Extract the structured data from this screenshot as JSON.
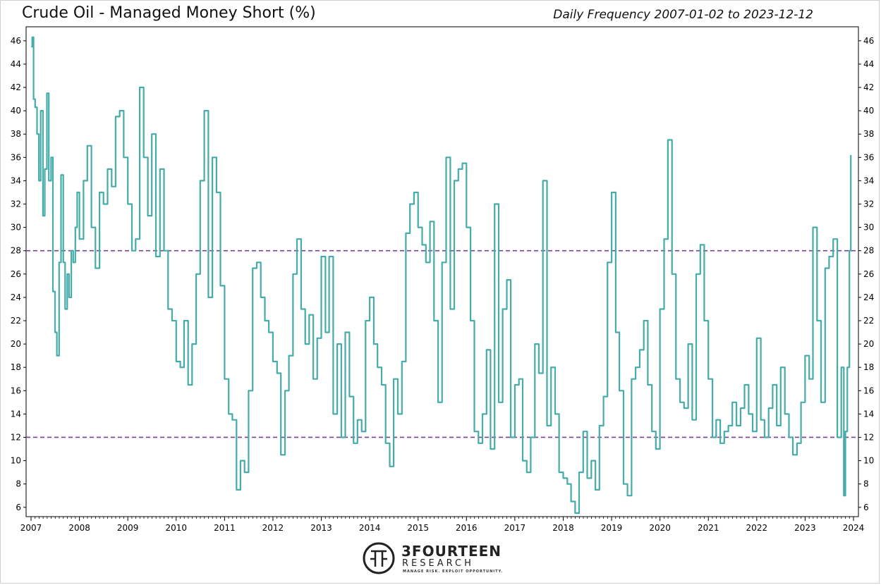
{
  "header": {
    "title": "Crude Oil - Managed Money Short (%)",
    "subtitle": "Daily Frequency 2007-01-02 to 2023-12-12"
  },
  "branding": {
    "name": "3FOURTEEN",
    "sub": "RESEARCH",
    "tagline": "MANAGE RISK. EXPLOIT OPPORTUNITY."
  },
  "colors": {
    "series": "#44aca9",
    "threshold": "#7a3f8f",
    "axis": "#000000"
  },
  "chart_data": {
    "type": "line",
    "title": "Crude Oil - Managed Money Short (%)",
    "subtitle": "Daily Frequency 2007-01-02 to 2023-12-12",
    "xlim": [
      "2007-01-01",
      "2024-01-01"
    ],
    "ylim": [
      5.2,
      47.2
    ],
    "x_ticks": [
      "2007",
      "2008",
      "2009",
      "2010",
      "2011",
      "2012",
      "2013",
      "2014",
      "2015",
      "2016",
      "2017",
      "2018",
      "2019",
      "2020",
      "2021",
      "2022",
      "2023",
      "2024"
    ],
    "y_ticks": [
      6,
      8,
      10,
      12,
      14,
      16,
      18,
      20,
      22,
      24,
      26,
      28,
      30,
      32,
      34,
      36,
      38,
      40,
      42,
      44,
      46
    ],
    "y_axis_right_mirror": true,
    "grid": false,
    "reference_lines": [
      {
        "y": 28,
        "style": "dashed"
      },
      {
        "y": 12,
        "style": "dashed"
      }
    ],
    "series": [
      {
        "x": [
          "2007-01-02",
          "2007-01-10",
          "2007-01-20",
          "2007-02-01",
          "2007-02-15",
          "2007-03-01",
          "2007-03-15",
          "2007-04-01",
          "2007-04-15",
          "2007-05-01",
          "2007-05-15",
          "2007-06-01",
          "2007-06-15",
          "2007-07-01",
          "2007-07-15",
          "2007-08-01",
          "2007-08-15",
          "2007-09-01",
          "2007-09-15",
          "2007-10-01",
          "2007-10-15",
          "2007-11-01",
          "2007-11-15",
          "2007-12-01",
          "2007-12-15",
          "2008-01-01",
          "2008-02-01",
          "2008-03-01",
          "2008-04-01",
          "2008-05-01",
          "2008-06-01",
          "2008-07-01",
          "2008-08-01",
          "2008-09-01",
          "2008-10-01",
          "2008-11-01",
          "2008-12-01",
          "2009-01-01",
          "2009-02-01",
          "2009-03-01",
          "2009-04-01",
          "2009-05-01",
          "2009-06-01",
          "2009-07-01",
          "2009-08-01",
          "2009-09-01",
          "2009-10-01",
          "2009-11-01",
          "2009-12-01",
          "2010-01-01",
          "2010-02-01",
          "2010-03-01",
          "2010-04-01",
          "2010-05-01",
          "2010-06-01",
          "2010-07-01",
          "2010-08-01",
          "2010-09-01",
          "2010-10-01",
          "2010-11-01",
          "2010-12-01",
          "2011-01-01",
          "2011-02-01",
          "2011-03-01",
          "2011-04-01",
          "2011-05-01",
          "2011-06-01",
          "2011-07-01",
          "2011-08-01",
          "2011-09-01",
          "2011-10-01",
          "2011-11-01",
          "2011-12-01",
          "2012-01-01",
          "2012-02-01",
          "2012-03-01",
          "2012-04-01",
          "2012-05-01",
          "2012-06-01",
          "2012-07-01",
          "2012-08-01",
          "2012-09-01",
          "2012-10-01",
          "2012-11-01",
          "2012-12-01",
          "2013-01-01",
          "2013-02-01",
          "2013-03-01",
          "2013-04-01",
          "2013-05-01",
          "2013-06-01",
          "2013-07-01",
          "2013-08-01",
          "2013-09-01",
          "2013-10-01",
          "2013-11-01",
          "2013-12-01",
          "2014-01-01",
          "2014-02-01",
          "2014-03-01",
          "2014-04-01",
          "2014-05-01",
          "2014-06-01",
          "2014-07-01",
          "2014-08-01",
          "2014-09-01",
          "2014-10-01",
          "2014-11-01",
          "2014-12-01",
          "2015-01-01",
          "2015-02-01",
          "2015-03-01",
          "2015-04-01",
          "2015-05-01",
          "2015-06-01",
          "2015-07-01",
          "2015-08-01",
          "2015-09-01",
          "2015-10-01",
          "2015-11-01",
          "2015-12-01",
          "2016-01-01",
          "2016-02-01",
          "2016-03-01",
          "2016-04-01",
          "2016-05-01",
          "2016-06-01",
          "2016-07-01",
          "2016-08-01",
          "2016-09-01",
          "2016-10-01",
          "2016-11-01",
          "2016-12-01",
          "2017-01-01",
          "2017-02-01",
          "2017-03-01",
          "2017-04-01",
          "2017-05-01",
          "2017-06-01",
          "2017-07-01",
          "2017-08-01",
          "2017-09-01",
          "2017-10-01",
          "2017-11-01",
          "2017-12-01",
          "2018-01-01",
          "2018-02-01",
          "2018-03-01",
          "2018-04-01",
          "2018-05-01",
          "2018-06-01",
          "2018-07-01",
          "2018-08-01",
          "2018-09-01",
          "2018-10-01",
          "2018-11-01",
          "2018-12-01",
          "2019-01-01",
          "2019-02-01",
          "2019-03-01",
          "2019-04-01",
          "2019-05-01",
          "2019-06-01",
          "2019-07-01",
          "2019-08-01",
          "2019-09-01",
          "2019-10-01",
          "2019-11-01",
          "2019-12-01",
          "2020-01-01",
          "2020-02-01",
          "2020-03-01",
          "2020-04-01",
          "2020-05-01",
          "2020-06-01",
          "2020-07-01",
          "2020-08-01",
          "2020-09-01",
          "2020-10-01",
          "2020-11-01",
          "2020-12-01",
          "2021-01-01",
          "2021-02-01",
          "2021-03-01",
          "2021-04-01",
          "2021-05-01",
          "2021-06-01",
          "2021-07-01",
          "2021-08-01",
          "2021-09-01",
          "2021-10-01",
          "2021-11-01",
          "2021-12-01",
          "2022-01-01",
          "2022-02-01",
          "2022-03-01",
          "2022-04-01",
          "2022-05-01",
          "2022-06-01",
          "2022-07-01",
          "2022-08-01",
          "2022-09-01",
          "2022-10-01",
          "2022-11-01",
          "2022-12-01",
          "2023-01-01",
          "2023-02-01",
          "2023-03-01",
          "2023-04-01",
          "2023-05-01",
          "2023-06-01",
          "2023-07-01",
          "2023-08-01",
          "2023-09-01",
          "2023-10-01",
          "2023-10-20",
          "2023-11-01",
          "2023-11-15",
          "2023-12-01",
          "2023-12-12"
        ],
        "y": [
          45.5,
          46.3,
          41.0,
          40.3,
          38.0,
          34.0,
          40.0,
          31.0,
          35.0,
          41.5,
          34.0,
          36.0,
          24.5,
          21.0,
          19.0,
          27.0,
          34.5,
          27.0,
          23.0,
          26.0,
          24.0,
          28.0,
          27.0,
          30.0,
          33.0,
          29.0,
          34.0,
          37.0,
          30.0,
          26.5,
          33.0,
          32.0,
          35.0,
          33.5,
          39.5,
          40.0,
          36.0,
          32.0,
          28.0,
          29.0,
          42.0,
          36.0,
          31.0,
          38.0,
          27.5,
          35.0,
          28.0,
          23.0,
          22.0,
          18.5,
          18.0,
          22.0,
          16.5,
          20.0,
          26.0,
          34.0,
          40.0,
          24.0,
          36.0,
          33.0,
          25.0,
          17.0,
          14.0,
          13.5,
          7.5,
          10.0,
          9.0,
          16.0,
          26.5,
          27.0,
          24.0,
          22.0,
          21.0,
          18.5,
          17.5,
          10.5,
          16.0,
          19.0,
          26.0,
          29.0,
          23.0,
          20.0,
          22.5,
          17.0,
          20.5,
          27.5,
          21.0,
          27.5,
          14.0,
          20.0,
          12.0,
          21.0,
          15.5,
          11.5,
          13.5,
          12.5,
          22.0,
          24.0,
          20.0,
          18.0,
          16.5,
          11.5,
          9.5,
          17.0,
          14.0,
          18.5,
          29.5,
          32.0,
          33.0,
          30.0,
          28.5,
          27.0,
          30.5,
          22.0,
          15.0,
          27.0,
          36.0,
          23.0,
          34.0,
          35.0,
          35.5,
          30.0,
          22.0,
          12.5,
          11.5,
          14.0,
          19.5,
          11.0,
          32.0,
          15.0,
          23.0,
          25.5,
          12.0,
          16.5,
          17.0,
          10.0,
          9.0,
          12.0,
          20.0,
          17.5,
          34.0,
          13.0,
          18.0,
          14.0,
          9.0,
          8.5,
          8.0,
          6.5,
          5.5,
          9.0,
          12.5,
          8.5,
          10.0,
          7.5,
          13.0,
          15.5,
          27.0,
          33.0,
          21.0,
          16.0,
          8.0,
          7.0,
          17.0,
          18.0,
          19.5,
          22.0,
          16.5,
          12.5,
          11.0,
          23.0,
          29.0,
          37.5,
          26.0,
          17.0,
          15.0,
          14.5,
          20.0,
          13.5,
          26.0,
          28.5,
          22.0,
          17.0,
          12.0,
          13.5,
          11.5,
          12.5,
          13.0,
          15.0,
          13.0,
          14.5,
          16.5,
          14.0,
          12.5,
          20.5,
          13.5,
          12.0,
          14.5,
          16.5,
          13.0,
          18.0,
          14.0,
          12.0,
          10.5,
          11.5,
          15.0,
          19.0,
          17.0,
          30.0,
          22.0,
          15.0,
          26.5,
          27.5,
          29.0,
          12.0,
          18.0,
          7.0,
          12.5,
          18.0,
          28.0,
          36.2
        ]
      }
    ]
  }
}
